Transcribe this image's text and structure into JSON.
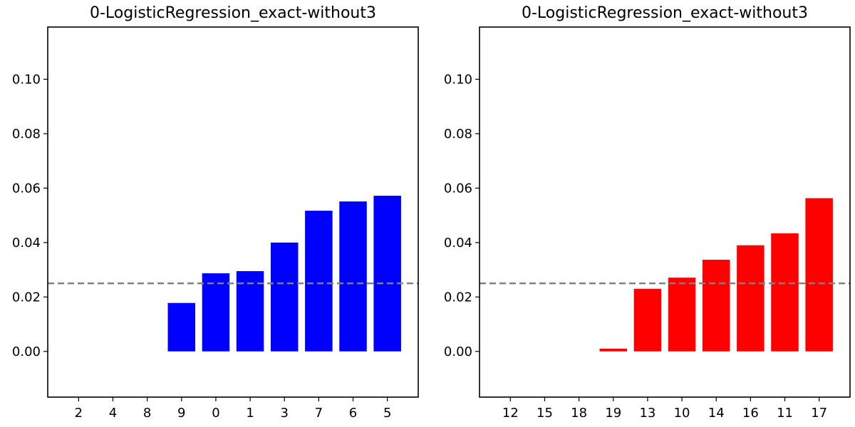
{
  "chart_data": [
    {
      "type": "bar",
      "title": "0-LogisticRegression_exact-without3",
      "categories": [
        "2",
        "4",
        "8",
        "9",
        "0",
        "1",
        "3",
        "7",
        "6",
        "5"
      ],
      "values": [
        0,
        0,
        0,
        0.0178,
        0.0287,
        0.0295,
        0.04,
        0.0517,
        0.0551,
        0.0572
      ],
      "color": "#0000ff",
      "ylim": [
        -0.0168,
        0.1192
      ],
      "yticks": [
        "0.00",
        "0.02",
        "0.04",
        "0.06",
        "0.08",
        "0.10"
      ],
      "reference_line": 0.025,
      "reference_color": "#808080",
      "grid": false
    },
    {
      "type": "bar",
      "title": "0-LogisticRegression_exact-without3",
      "categories": [
        "12",
        "15",
        "18",
        "19",
        "13",
        "10",
        "14",
        "16",
        "11",
        "17"
      ],
      "values": [
        0,
        0,
        0,
        0.001,
        0.023,
        0.0271,
        0.0337,
        0.039,
        0.0434,
        0.0563
      ],
      "color": "#ff0000",
      "ylim": [
        -0.0168,
        0.1192
      ],
      "yticks": [
        "0.00",
        "0.02",
        "0.04",
        "0.06",
        "0.08",
        "0.10"
      ],
      "reference_line": 0.025,
      "reference_color": "#808080",
      "grid": false
    }
  ]
}
